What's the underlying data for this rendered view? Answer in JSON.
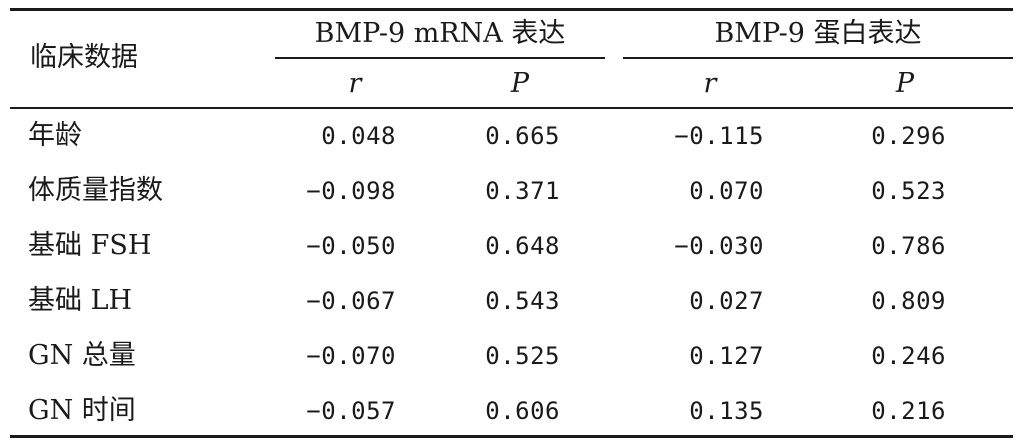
{
  "header": {
    "row_label": "临床数据",
    "group1": "BMP-9 mRNA 表达",
    "group2": "BMP-9 蛋白表达",
    "sub_r": "r",
    "sub_p": "P"
  },
  "rows": [
    {
      "label": "年龄",
      "mrna_r": "0.048",
      "mrna_p": "0.665",
      "prot_r": "−0.115",
      "prot_p": "0.296"
    },
    {
      "label": "体质量指数",
      "mrna_r": "−0.098",
      "mrna_p": "0.371",
      "prot_r": "0.070",
      "prot_p": "0.523"
    },
    {
      "label": "基础 FSH",
      "mrna_r": "−0.050",
      "mrna_p": "0.648",
      "prot_r": "−0.030",
      "prot_p": "0.786"
    },
    {
      "label": "基础 LH",
      "mrna_r": "−0.067",
      "mrna_p": "0.543",
      "prot_r": "0.027",
      "prot_p": "0.809"
    },
    {
      "label": "GN 总量",
      "mrna_r": "−0.070",
      "mrna_p": "0.525",
      "prot_r": "0.127",
      "prot_p": "0.246"
    },
    {
      "label": "GN 时间",
      "mrna_r": "−0.057",
      "mrna_p": "0.606",
      "prot_r": "0.135",
      "prot_p": "0.216"
    }
  ]
}
